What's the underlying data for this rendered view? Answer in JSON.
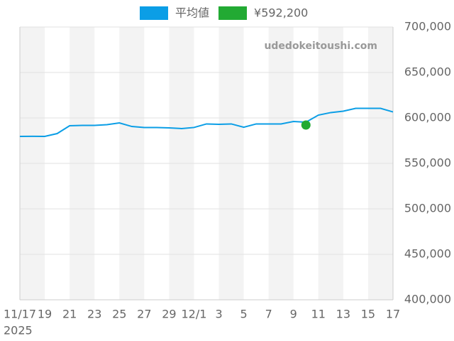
{
  "chart_data": {
    "type": "line",
    "watermark": "udedokeitoushi.com",
    "categories": [
      "11/17",
      null,
      "19",
      null,
      "21",
      null,
      "23",
      null,
      "25",
      null,
      "27",
      null,
      "29",
      null,
      "12/1",
      null,
      "3",
      null,
      "5",
      null,
      "7",
      null,
      "9",
      null,
      "11",
      null,
      "13",
      null,
      "15",
      null,
      "17"
    ],
    "year_label": "2025",
    "series": [
      {
        "name": "平均値",
        "color": "#0b9ee6",
        "kind": "line",
        "values": [
          579700,
          579800,
          579700,
          582800,
          591400,
          591800,
          591800,
          592600,
          594500,
          590600,
          589500,
          589500,
          589100,
          588300,
          589500,
          593400,
          593000,
          593400,
          589800,
          593400,
          593400,
          593400,
          596100,
          595300,
          603100,
          605900,
          607400,
          610500,
          610500,
          610500,
          606600
        ]
      },
      {
        "name": "¥592,200",
        "color": "#22aa33",
        "kind": "point",
        "values": [
          null,
          null,
          null,
          null,
          null,
          null,
          null,
          null,
          null,
          null,
          null,
          null,
          null,
          null,
          null,
          null,
          null,
          null,
          null,
          null,
          null,
          null,
          null,
          592200,
          null,
          null,
          null,
          null,
          null,
          null,
          null
        ]
      }
    ],
    "ylim": [
      400000,
      700000
    ],
    "yticks": [
      {
        "value": 400000,
        "label": "400,000"
      },
      {
        "value": 450000,
        "label": "450,000"
      },
      {
        "value": 500000,
        "label": "500,000"
      },
      {
        "value": 550000,
        "label": "550,000"
      },
      {
        "value": 600000,
        "label": "600,000"
      },
      {
        "value": 650000,
        "label": "650,000"
      },
      {
        "value": 700000,
        "label": "700,000"
      }
    ],
    "grid": true,
    "legend": "top",
    "band_color": "#f3f3f3"
  }
}
